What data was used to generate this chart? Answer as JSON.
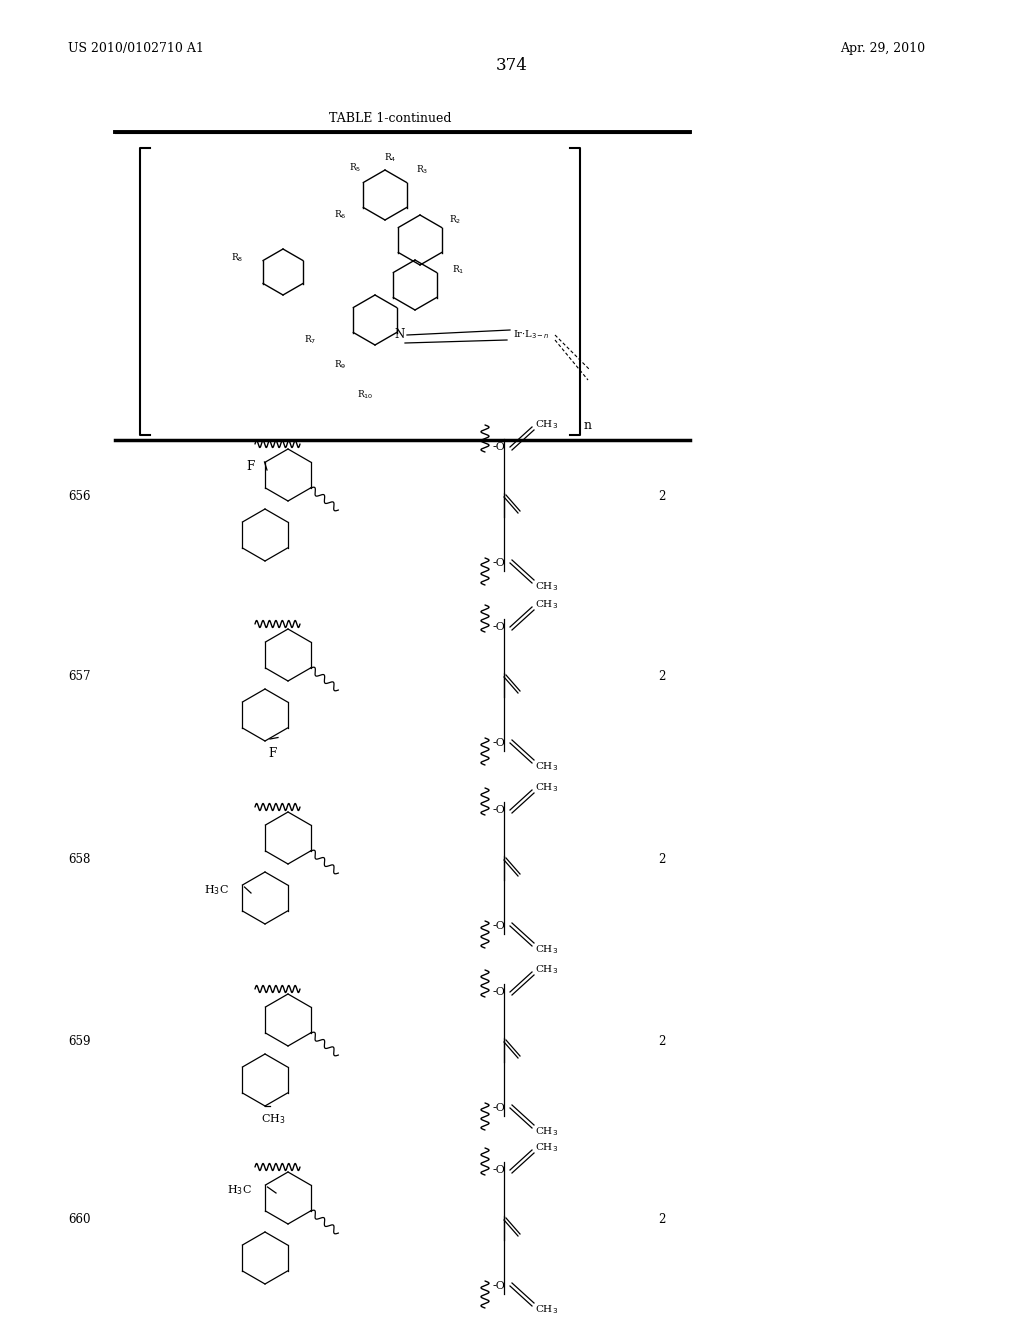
{
  "page_number": "374",
  "patent_number": "US 2010/0102710 A1",
  "patent_date": "Apr. 29, 2010",
  "table_title": "TABLE 1-continued",
  "bg": "#ffffff",
  "rows": [
    {
      "num": "656",
      "n_val": "2",
      "sub": "F_left_on_top_ring"
    },
    {
      "num": "657",
      "n_val": "2",
      "sub": "F_bottom_on_bot_ring"
    },
    {
      "num": "658",
      "n_val": "2",
      "sub": "H3C_left_on_bot_ring"
    },
    {
      "num": "659",
      "n_val": "2",
      "sub": "CH3_bottom_on_bot_ring"
    },
    {
      "num": "660",
      "n_val": "2",
      "sub": "H3C_left_on_top_ring"
    }
  ]
}
